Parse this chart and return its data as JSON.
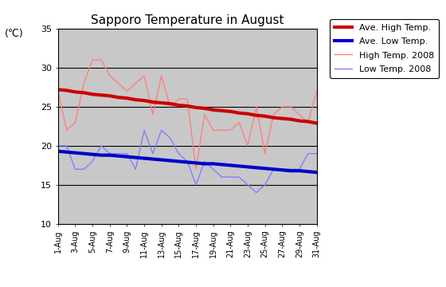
{
  "title": "Sapporo Temperature in August",
  "unit_label": "(℃)",
  "ylim": [
    10,
    35
  ],
  "yticks": [
    10,
    15,
    20,
    25,
    30,
    35
  ],
  "days": [
    1,
    2,
    3,
    4,
    5,
    6,
    7,
    8,
    9,
    10,
    11,
    12,
    13,
    14,
    15,
    16,
    17,
    18,
    19,
    20,
    21,
    22,
    23,
    24,
    25,
    26,
    27,
    28,
    29,
    30,
    31
  ],
  "xtick_labels": [
    "1-Aug",
    "3-Aug",
    "5-Aug",
    "7-Aug",
    "9-Aug",
    "11-Aug",
    "13-Aug",
    "15-Aug",
    "17-Aug",
    "19-Aug",
    "21-Aug",
    "23-Aug",
    "25-Aug",
    "27-Aug",
    "29-Aug",
    "31-Aug"
  ],
  "xtick_positions": [
    1,
    3,
    5,
    7,
    9,
    11,
    13,
    15,
    17,
    19,
    21,
    23,
    25,
    27,
    29,
    31
  ],
  "high_2008": [
    27,
    22,
    23,
    28,
    31,
    31,
    29,
    28,
    27,
    28,
    29,
    24,
    29,
    25,
    26,
    26,
    17,
    24,
    22,
    22,
    22,
    23,
    20,
    25,
    19,
    24,
    25,
    25,
    24,
    23,
    27
  ],
  "low_2008": [
    20,
    20,
    17,
    17,
    18,
    20,
    19,
    19,
    19,
    17,
    22,
    19,
    22,
    21,
    19,
    18,
    15,
    18,
    17,
    16,
    16,
    16,
    15,
    14,
    15,
    17,
    17,
    17,
    17,
    19,
    19
  ],
  "ave_high": [
    27.2,
    27.1,
    26.9,
    26.8,
    26.6,
    26.5,
    26.4,
    26.2,
    26.1,
    25.9,
    25.8,
    25.6,
    25.5,
    25.4,
    25.2,
    25.1,
    24.9,
    24.8,
    24.6,
    24.5,
    24.4,
    24.2,
    24.1,
    23.9,
    23.8,
    23.6,
    23.5,
    23.4,
    23.2,
    23.1,
    22.9
  ],
  "ave_low": [
    19.3,
    19.2,
    19.1,
    19.0,
    18.9,
    18.8,
    18.8,
    18.7,
    18.6,
    18.5,
    18.4,
    18.3,
    18.2,
    18.1,
    18.0,
    17.9,
    17.8,
    17.7,
    17.7,
    17.6,
    17.5,
    17.4,
    17.3,
    17.2,
    17.1,
    17.0,
    16.9,
    16.8,
    16.8,
    16.7,
    16.6
  ],
  "color_ave_high": "#cc0000",
  "color_ave_low": "#0000cc",
  "color_high_2008": "#ff8080",
  "color_low_2008": "#8080ff",
  "axes_facecolor": "#c8c8c8",
  "fig_facecolor": "#ffffff",
  "grid_color": "#000000",
  "legend_labels": [
    "Ave. High Temp.",
    "Ave. Low Temp.",
    "High Temp. 2008",
    "Low Temp. 2008"
  ]
}
